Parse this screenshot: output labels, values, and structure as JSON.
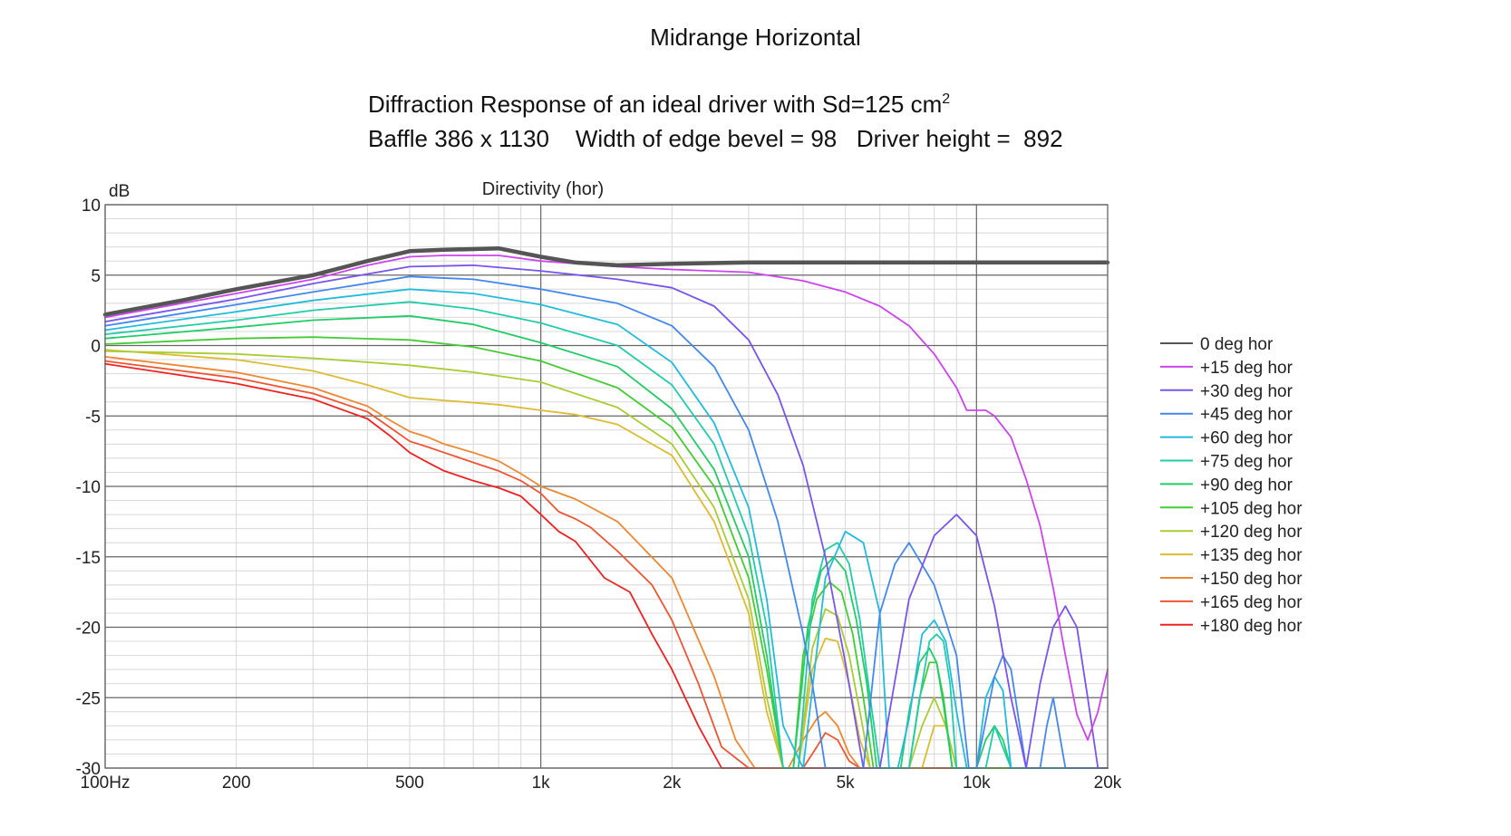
{
  "header": {
    "title": "Midrange Horizontal",
    "line1_prefix": "Diffraction Response of an ideal driver with Sd=125 cm",
    "line1_sup": "2",
    "line2": "Baffle 386 x 1130    Width of edge bevel = 98   Driver height =  892"
  },
  "chart_data": {
    "type": "line",
    "title": "Directivity (hor)",
    "ylabel": "dB",
    "xlabel": "",
    "xscale": "log",
    "xlim": [
      100,
      20000
    ],
    "ylim": [
      -30,
      10
    ],
    "x_ticks": [
      100,
      200,
      500,
      1000,
      2000,
      5000,
      10000,
      20000
    ],
    "x_tick_labels": [
      "100Hz",
      "200",
      "500",
      "1k",
      "2k",
      "5k",
      "10k",
      "20k"
    ],
    "y_ticks": [
      10,
      5,
      0,
      -5,
      -10,
      -15,
      -20,
      -25,
      -30
    ],
    "y_tick_labels": [
      "10",
      "5",
      "0",
      "-5",
      "-10",
      "-15",
      "-20",
      "-25",
      "-30"
    ],
    "grid": true,
    "legend_position": "right",
    "series": [
      {
        "name": "0 deg hor",
        "color": "#555555",
        "x": [
          100,
          150,
          200,
          300,
          400,
          500,
          600,
          800,
          1000,
          1200,
          1500,
          2000,
          3000,
          5000,
          10000,
          20000
        ],
        "y": [
          2.2,
          3.2,
          4.0,
          5.0,
          6.0,
          6.7,
          6.8,
          6.9,
          6.3,
          5.9,
          5.7,
          5.8,
          5.9,
          5.9,
          5.9,
          5.9
        ]
      },
      {
        "name": "+15 deg hor",
        "color": "#cc44ee",
        "x": [
          100,
          150,
          200,
          300,
          400,
          500,
          600,
          800,
          1000,
          1500,
          2000,
          3000,
          4000,
          5000,
          6000,
          7000,
          8000,
          9000,
          9500,
          10000,
          10500,
          11000,
          12000,
          13000,
          14000,
          15000,
          16000,
          17000,
          18000,
          19000,
          20000
        ],
        "y": [
          2.0,
          3.0,
          3.7,
          4.7,
          5.7,
          6.3,
          6.4,
          6.4,
          6.0,
          5.6,
          5.4,
          5.2,
          4.6,
          3.8,
          2.8,
          1.4,
          -0.6,
          -3.0,
          -4.6,
          -4.6,
          -4.6,
          -5.0,
          -6.5,
          -9.5,
          -12.8,
          -17.2,
          -22.0,
          -26.2,
          -28.0,
          -26.0,
          -23.0
        ]
      },
      {
        "name": "+30 deg hor",
        "color": "#7755ee",
        "x": [
          100,
          200,
          300,
          500,
          700,
          1000,
          1500,
          2000,
          2500,
          3000,
          3500,
          4000,
          4500,
          5000,
          5500,
          6000,
          7000,
          8000,
          9000,
          10000,
          11000,
          12000,
          13000,
          14000,
          15000,
          16000,
          17000,
          18000,
          19000,
          20000
        ],
        "y": [
          1.7,
          3.3,
          4.4,
          5.6,
          5.7,
          5.3,
          4.7,
          4.1,
          2.8,
          0.4,
          -3.5,
          -8.5,
          -15.0,
          -22.5,
          -30.0,
          -30.0,
          -18.0,
          -13.5,
          -12.0,
          -13.5,
          -18.5,
          -25.0,
          -30.0,
          -24.0,
          -20.0,
          -18.5,
          -20.0,
          -25.0,
          -30.0,
          -30.0
        ]
      },
      {
        "name": "+45 deg hor",
        "color": "#4488ee",
        "x": [
          100,
          200,
          300,
          500,
          700,
          1000,
          1500,
          2000,
          2500,
          3000,
          3500,
          4000,
          4200,
          4500,
          5000,
          5500,
          6000,
          6500,
          7000,
          8000,
          9000,
          9600,
          10000,
          11000,
          11500,
          12000,
          13000,
          13500,
          14000,
          14500,
          15000,
          16000,
          17000,
          18000,
          19000,
          20000
        ],
        "y": [
          1.4,
          2.9,
          3.8,
          4.9,
          4.7,
          4.0,
          3.0,
          1.4,
          -1.5,
          -6.0,
          -12.5,
          -20.5,
          -24.0,
          -30.0,
          -30.0,
          -30.0,
          -19.0,
          -15.5,
          -14.0,
          -17.0,
          -22.0,
          -30.0,
          -30.0,
          -23.5,
          -22.0,
          -23.0,
          -30.0,
          -30.0,
          -30.0,
          -27.0,
          -25.0,
          -30.0,
          -30.0,
          -30.0,
          -30.0,
          -30.0
        ]
      },
      {
        "name": "+60 deg hor",
        "color": "#22bbdd",
        "x": [
          100,
          200,
          300,
          500,
          700,
          1000,
          1500,
          2000,
          2500,
          3000,
          3300,
          3600,
          4000,
          4500,
          5000,
          5500,
          6000,
          6300,
          6600,
          7000,
          7500,
          8000,
          8500,
          9000,
          9500,
          10000,
          10500,
          11000,
          11500,
          12000,
          13000,
          14000,
          15000,
          20000
        ],
        "y": [
          1.1,
          2.4,
          3.2,
          4.0,
          3.7,
          2.9,
          1.5,
          -1.2,
          -5.5,
          -11.5,
          -18.0,
          -27.0,
          -30.0,
          -16.5,
          -13.2,
          -14.0,
          -19.0,
          -30.0,
          -30.0,
          -26.5,
          -20.5,
          -19.5,
          -21.0,
          -26.0,
          -30.0,
          -30.0,
          -25.0,
          -23.5,
          -24.5,
          -30.0,
          -30.0,
          -30.0,
          -30.0,
          -30.0
        ]
      },
      {
        "name": "+75 deg hor",
        "color": "#22ccaa",
        "x": [
          100,
          200,
          300,
          500,
          700,
          1000,
          1500,
          2000,
          2500,
          3000,
          3300,
          3600,
          3900,
          4200,
          4500,
          4800,
          5100,
          5400,
          5700,
          6000,
          6500,
          7000,
          7500,
          7800,
          8100,
          8400,
          8700,
          9000,
          9500,
          10000,
          10500,
          11000,
          12000,
          20000
        ],
        "y": [
          0.8,
          1.8,
          2.5,
          3.1,
          2.6,
          1.6,
          0.0,
          -2.8,
          -7.0,
          -13.5,
          -20.0,
          -30.0,
          -30.0,
          -18.0,
          -14.5,
          -14.0,
          -15.5,
          -19.5,
          -25.0,
          -30.0,
          -30.0,
          -30.0,
          -24.0,
          -21.0,
          -20.5,
          -21.0,
          -24.0,
          -30.0,
          -30.0,
          -30.0,
          -30.0,
          -27.0,
          -30.0,
          -30.0
        ]
      },
      {
        "name": "+90 deg hor",
        "color": "#22cc66",
        "x": [
          100,
          200,
          300,
          500,
          700,
          1000,
          1500,
          2000,
          2500,
          3000,
          3300,
          3600,
          3800,
          4100,
          4400,
          4700,
          5000,
          5300,
          5600,
          5900,
          6300,
          6700,
          7000,
          7400,
          7800,
          8100,
          8400,
          8800,
          9200,
          9600,
          10000,
          10500,
          11000,
          11500,
          12000,
          20000
        ],
        "y": [
          0.5,
          1.3,
          1.8,
          2.1,
          1.5,
          0.2,
          -1.5,
          -4.5,
          -8.8,
          -15.0,
          -22.0,
          -30.0,
          -30.0,
          -20.0,
          -16.0,
          -15.0,
          -16.0,
          -19.5,
          -24.0,
          -30.0,
          -30.0,
          -30.0,
          -26.0,
          -22.5,
          -21.5,
          -22.5,
          -25.5,
          -30.0,
          -30.0,
          -30.0,
          -30.0,
          -28.0,
          -27.0,
          -28.0,
          -30.0,
          -30.0
        ]
      },
      {
        "name": "+105 deg hor",
        "color": "#44cc33",
        "x": [
          100,
          200,
          300,
          500,
          700,
          1000,
          1500,
          2000,
          2500,
          3000,
          3300,
          3600,
          3800,
          4000,
          4300,
          4600,
          4900,
          5200,
          5500,
          5800,
          6200,
          6600,
          7000,
          7400,
          7800,
          8100,
          8400,
          8800,
          9200,
          9600,
          10000,
          11000,
          12000,
          20000
        ],
        "y": [
          0.1,
          0.5,
          0.6,
          0.4,
          -0.1,
          -1.1,
          -3.0,
          -5.8,
          -10.0,
          -16.5,
          -23.0,
          -30.0,
          -30.0,
          -22.0,
          -18.0,
          -16.8,
          -17.5,
          -20.5,
          -25.0,
          -30.0,
          -30.0,
          -30.0,
          -30.0,
          -25.0,
          -22.5,
          -22.5,
          -25.0,
          -30.0,
          -30.0,
          -30.0,
          -30.0,
          -30.0,
          -30.0,
          -30.0
        ]
      },
      {
        "name": "+120 deg hor",
        "color": "#aacc33",
        "x": [
          100,
          200,
          300,
          500,
          700,
          1000,
          1500,
          2000,
          2500,
          3000,
          3300,
          3600,
          3900,
          4200,
          4500,
          4800,
          5100,
          5400,
          5700,
          6000,
          6500,
          7000,
          7500,
          8000,
          8500,
          9000,
          10000,
          20000
        ],
        "y": [
          -0.4,
          -0.6,
          -0.9,
          -1.4,
          -1.9,
          -2.6,
          -4.4,
          -7.0,
          -11.5,
          -18.0,
          -25.0,
          -30.0,
          -30.0,
          -21.5,
          -18.7,
          -19.2,
          -22.0,
          -26.0,
          -30.0,
          -30.0,
          -30.0,
          -30.0,
          -27.0,
          -25.0,
          -27.0,
          -30.0,
          -30.0,
          -30.0
        ]
      },
      {
        "name": "+135 deg hor",
        "color": "#ddbb33",
        "x": [
          100,
          200,
          300,
          400,
          500,
          600,
          800,
          1000,
          1200,
          1500,
          2000,
          2500,
          3000,
          3300,
          3600,
          3900,
          4200,
          4500,
          4800,
          5100,
          5400,
          5700,
          6000,
          7000,
          7500,
          8000,
          8500,
          9000,
          10000,
          20000
        ],
        "y": [
          -0.3,
          -1.0,
          -1.8,
          -2.8,
          -3.7,
          -3.9,
          -4.2,
          -4.6,
          -4.9,
          -5.6,
          -7.8,
          -12.5,
          -19.0,
          -26.0,
          -30.0,
          -30.0,
          -23.0,
          -20.8,
          -21.0,
          -24.0,
          -28.0,
          -30.0,
          -30.0,
          -30.0,
          -30.0,
          -27.0,
          -27.0,
          -30.0,
          -30.0,
          -30.0
        ]
      },
      {
        "name": "+150 deg hor",
        "color": "#ee8833",
        "x": [
          100,
          200,
          300,
          400,
          450,
          500,
          550,
          600,
          700,
          800,
          900,
          1000,
          1200,
          1500,
          2000,
          2500,
          2800,
          3100,
          3400,
          3700,
          4000,
          4300,
          4500,
          4800,
          5100,
          5400,
          5700,
          6000,
          20000
        ],
        "y": [
          -0.8,
          -1.9,
          -3.0,
          -4.3,
          -5.3,
          -6.1,
          -6.5,
          -7.0,
          -7.6,
          -8.2,
          -9.1,
          -10.0,
          -10.9,
          -12.5,
          -16.5,
          -23.5,
          -28.0,
          -30.0,
          -30.0,
          -30.0,
          -28.0,
          -26.5,
          -26.0,
          -27.0,
          -29.0,
          -30.0,
          -30.0,
          -30.0,
          -30.0
        ]
      },
      {
        "name": "+165 deg hor",
        "color": "#ee5533",
        "x": [
          100,
          200,
          300,
          400,
          450,
          500,
          550,
          600,
          700,
          800,
          900,
          1000,
          1100,
          1200,
          1300,
          1500,
          1800,
          2000,
          2300,
          2600,
          3000,
          3500,
          4000,
          4300,
          4500,
          4800,
          5100,
          5400,
          5700,
          6000,
          20000
        ],
        "y": [
          -1.1,
          -2.3,
          -3.4,
          -4.7,
          -5.8,
          -6.8,
          -7.2,
          -7.6,
          -8.3,
          -8.9,
          -9.6,
          -10.5,
          -11.8,
          -12.3,
          -12.9,
          -14.6,
          -17.0,
          -19.5,
          -24.0,
          -28.5,
          -30.0,
          -30.0,
          -30.0,
          -28.5,
          -27.5,
          -28.0,
          -29.5,
          -30.0,
          -30.0,
          -30.0,
          -30.0
        ]
      },
      {
        "name": "+180 deg hor",
        "color": "#ee2222",
        "x": [
          100,
          200,
          300,
          400,
          450,
          500,
          550,
          600,
          700,
          800,
          900,
          1000,
          1100,
          1200,
          1400,
          1600,
          1800,
          2000,
          2300,
          2600,
          2800,
          20000
        ],
        "y": [
          -1.3,
          -2.7,
          -3.8,
          -5.2,
          -6.4,
          -7.6,
          -8.3,
          -8.9,
          -9.6,
          -10.1,
          -10.7,
          -12.0,
          -13.2,
          -13.9,
          -16.5,
          -17.5,
          -20.5,
          -23.0,
          -27.0,
          -30.0,
          -30.0,
          -30.0
        ]
      }
    ]
  }
}
